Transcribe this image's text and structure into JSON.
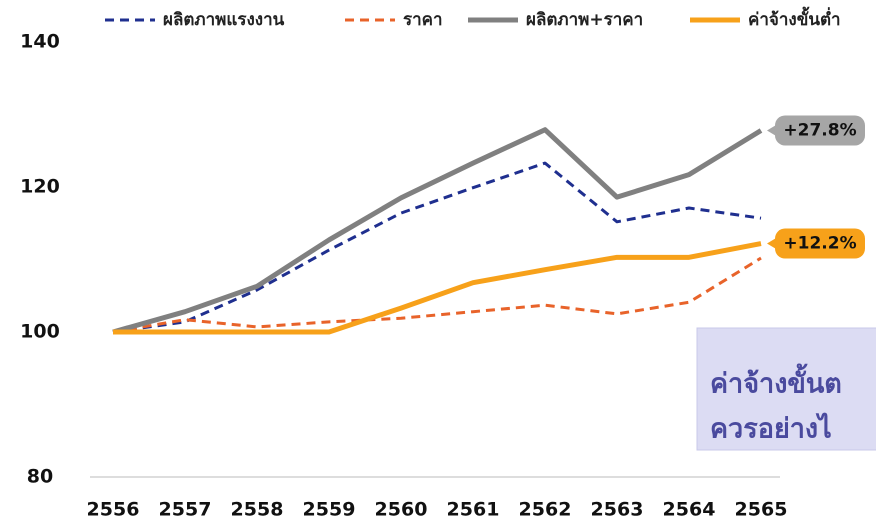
{
  "chart_data": {
    "type": "line",
    "categories": [
      "2556",
      "2557",
      "2558",
      "2559",
      "2560",
      "2561",
      "2562",
      "2563",
      "2564",
      "2565"
    ],
    "series": [
      {
        "name": "ผลิตภาพแรงงาน",
        "color": "#1f2f8f",
        "dashed": true,
        "values": [
          100,
          101.4,
          105.8,
          111.3,
          116.4,
          119.9,
          123.3,
          115.2,
          117.1,
          115.7
        ]
      },
      {
        "name": "ราคา",
        "color": "#e8632a",
        "dashed": true,
        "values": [
          100,
          101.7,
          100.7,
          101.4,
          101.9,
          102.8,
          103.7,
          102.5,
          104.1,
          110.2
        ]
      },
      {
        "name": "ผลิตภาพ+ราคา",
        "color": "#808080",
        "dashed": false,
        "values": [
          100,
          102.8,
          106.3,
          112.7,
          118.5,
          123.3,
          127.9,
          118.6,
          121.7,
          127.8
        ]
      },
      {
        "name": "ค่าจ้างขั้นต่ำ",
        "color": "#f7a11a",
        "dashed": false,
        "values": [
          100,
          100,
          100,
          100,
          103.3,
          106.8,
          108.6,
          110.3,
          110.3,
          112.2
        ]
      }
    ],
    "ylim": [
      80,
      140
    ],
    "yticks": [
      80,
      100,
      120,
      140
    ],
    "grid": false,
    "legend": "top",
    "annotations": [
      {
        "text": "+27.8%",
        "series": 2,
        "color": "#a6a6a6"
      },
      {
        "text": "+12.2%",
        "series": 3,
        "color": "#f7a11a"
      }
    ],
    "callout": [
      "ค่าจ้างขั้นต",
      "ควรอย่างไ"
    ]
  }
}
